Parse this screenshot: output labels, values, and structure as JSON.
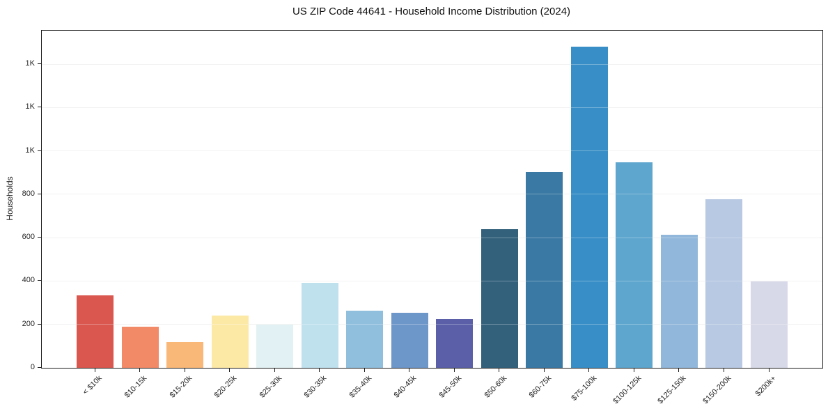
{
  "title": "US ZIP Code 44641 - Household Income Distribution (2024)",
  "chart_data": {
    "type": "bar",
    "title": "US ZIP Code 44641 - Household Income Distribution (2024)",
    "xlabel": "",
    "ylabel": "Households",
    "categories": [
      "< $10k",
      "$10-15k",
      "$15-20k",
      "$20-25k",
      "$25-30k",
      "$30-35k",
      "$35-40k",
      "$40-45k",
      "$45-50k",
      "$50-60k",
      "$60-75k",
      "$75-100k",
      "$100-125k",
      "$125-150k",
      "$150-200k",
      "$200k+"
    ],
    "values": [
      335,
      190,
      120,
      242,
      198,
      393,
      264,
      253,
      226,
      640,
      903,
      1480,
      948,
      613,
      777,
      398
    ],
    "bar_colors": [
      "#d9574f",
      "#f28a68",
      "#f9b877",
      "#fde9a6",
      "#e2f1f3",
      "#bfe1ee",
      "#90bfde",
      "#6d96c9",
      "#5a5fa8",
      "#33617c",
      "#3a79a4",
      "#388ec6",
      "#5ea6ce",
      "#91b7da",
      "#b8c9e3",
      "#d8d9e8"
    ],
    "ylim": [
      0,
      1555
    ],
    "yticks": {
      "values": [
        0,
        200,
        400,
        600,
        800,
        1000,
        1200,
        1400
      ],
      "labels": [
        "0",
        "200",
        "400",
        "600",
        "800",
        "1K",
        "1K",
        "1K"
      ]
    },
    "grid": "horizontal",
    "legend": "none",
    "colors": {
      "axis": "#1c1c1c",
      "grid": "#ececec",
      "text": "#262626",
      "background": "#ffffff"
    }
  }
}
